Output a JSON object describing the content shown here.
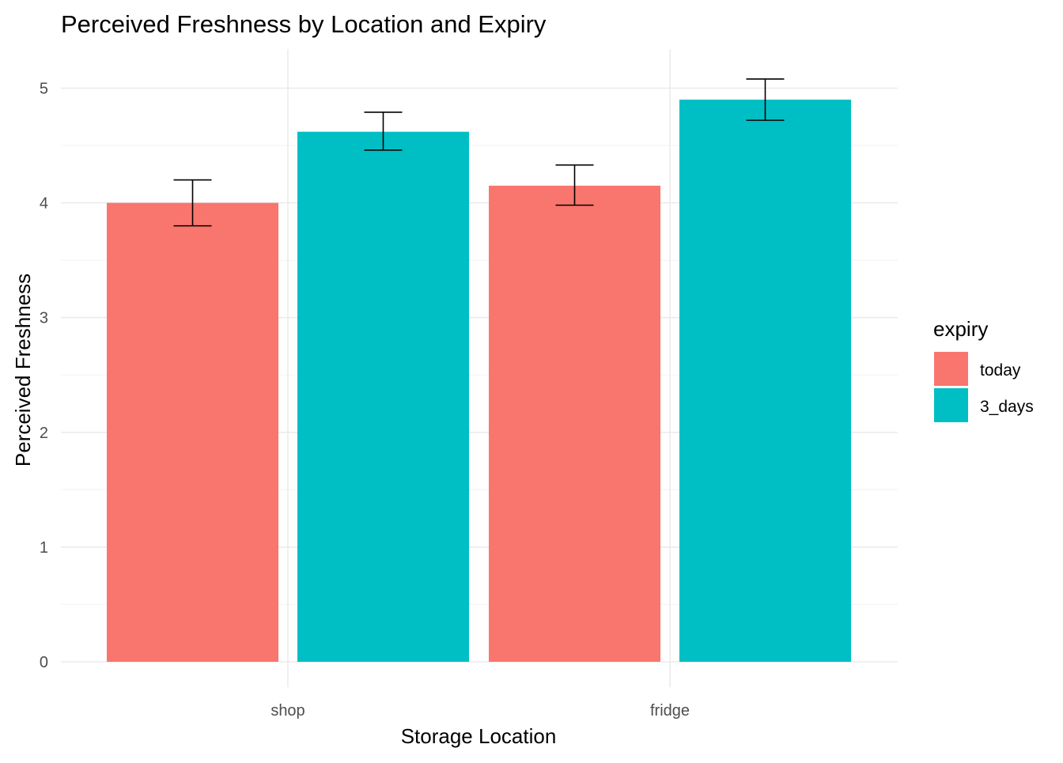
{
  "chart_data": {
    "type": "bar",
    "title": "Perceived Freshness by Location and Expiry",
    "xlabel": "Storage Location",
    "ylabel": "Perceived Freshness",
    "categories": [
      "shop",
      "fridge"
    ],
    "ylim": [
      0,
      5.2
    ],
    "yticks": [
      "0",
      "1",
      "2",
      "3",
      "4",
      "5"
    ],
    "grid": true,
    "legend": {
      "title": "expiry",
      "position": "right"
    },
    "series": [
      {
        "name": "today",
        "color": "#F8766D",
        "values": [
          4.0,
          4.15
        ],
        "error_low": [
          3.8,
          3.98
        ],
        "error_high": [
          4.2,
          4.33
        ]
      },
      {
        "name": "3_days",
        "color": "#00BFC4",
        "values": [
          4.62,
          4.9
        ],
        "error_low": [
          4.46,
          4.72
        ],
        "error_high": [
          4.79,
          5.08
        ]
      }
    ]
  }
}
